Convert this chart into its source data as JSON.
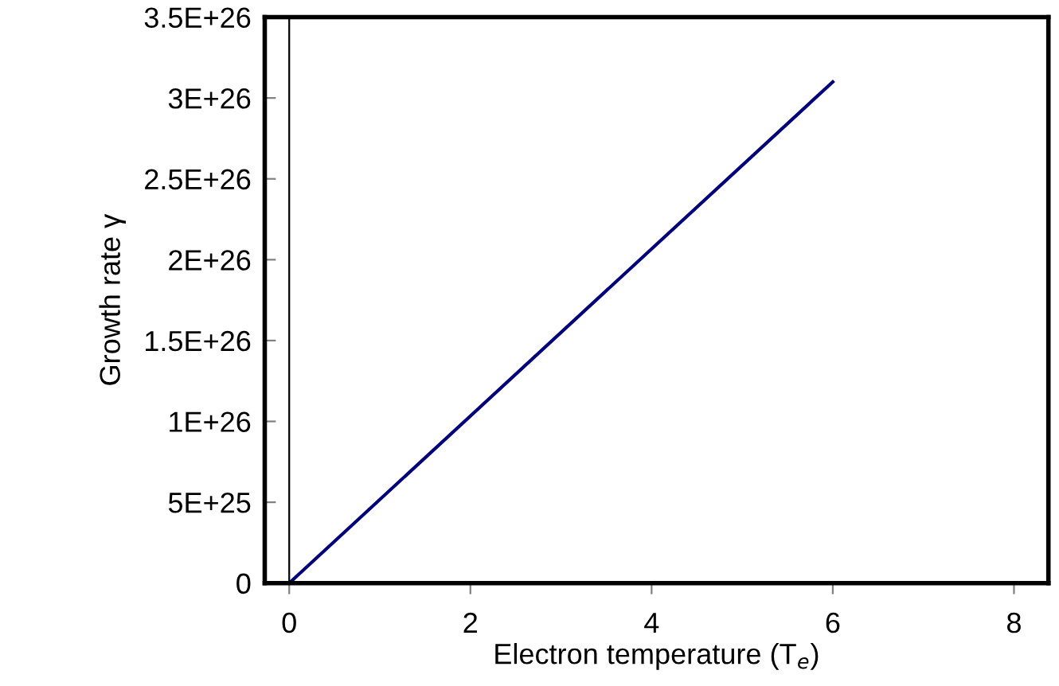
{
  "chart_data": {
    "type": "line",
    "xlabel": "Electron temperature (T$_{e}$)",
    "ylabel": "Growth rate γ",
    "x": [
      0,
      6
    ],
    "series": [
      {
        "color": "#000080",
        "values": [
          0,
          3.1e+26
        ]
      }
    ],
    "xlim": [
      -0.27,
      8.38
    ],
    "xticks": [
      0,
      2,
      4,
      6,
      8
    ],
    "ylim": [
      0,
      3.5e+26
    ],
    "yticks": [
      {
        "value": 0,
        "label": "0"
      },
      {
        "value": 5e+25,
        "label": "5E+25"
      },
      {
        "value": 1e+26,
        "label": "1E+26"
      },
      {
        "value": 1.5e+26,
        "label": "1.5E+26"
      },
      {
        "value": 2e+26,
        "label": "2E+26"
      },
      {
        "value": 2.5e+26,
        "label": "2.5E+26"
      },
      {
        "value": 3e+26,
        "label": "3E+26"
      },
      {
        "value": 3.5e+26,
        "label": "3.5E+26"
      }
    ],
    "ref_lines": [
      {
        "axis": "x",
        "value": 0,
        "color": "#000000"
      }
    ],
    "grid": false,
    "legend": false,
    "marker": "none",
    "line_style": "solid"
  }
}
